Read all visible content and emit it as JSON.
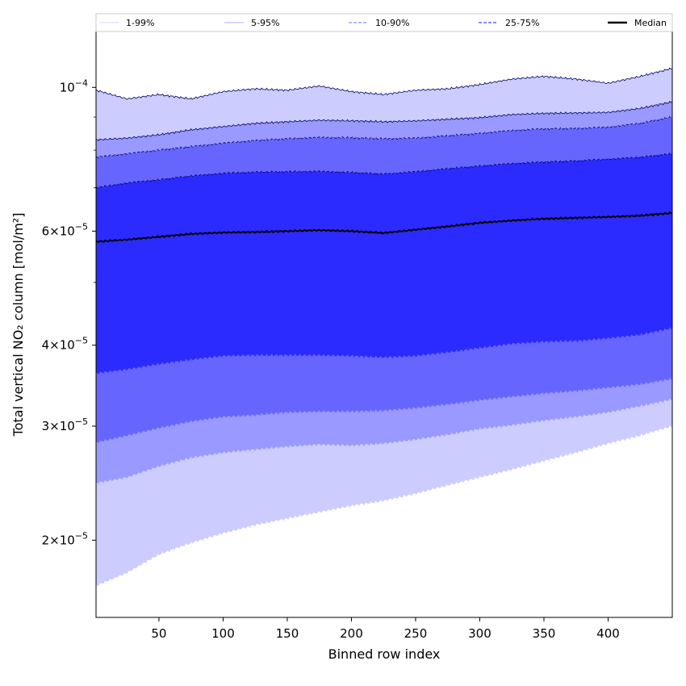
{
  "chart_data": {
    "type": "area",
    "xlabel": "Binned row index",
    "ylabel": "Total vertical NO₂ column [mol/m²]",
    "x_ticks": [
      50,
      100,
      150,
      200,
      250,
      300,
      350,
      400
    ],
    "y_ticks": [
      {
        "value": 0.0001,
        "mant": "",
        "exp": "−4",
        "label": "10"
      },
      {
        "value": 6e-05,
        "mant": "6×",
        "exp": "−5",
        "label": "10"
      },
      {
        "value": 4e-05,
        "mant": "4×",
        "exp": "−5",
        "label": "10"
      },
      {
        "value": 3e-05,
        "mant": "3×",
        "exp": "−5",
        "label": "10"
      },
      {
        "value": 2e-05,
        "mant": "2×",
        "exp": "−5",
        "label": "10"
      }
    ],
    "y_scale": "log",
    "xlim": [
      1,
      450
    ],
    "ylim": [
      1.52e-05,
      0.000122
    ],
    "grid": false,
    "legend_position": "top",
    "x": [
      1,
      25,
      50,
      75,
      100,
      125,
      150,
      175,
      200,
      225,
      250,
      275,
      300,
      325,
      350,
      375,
      400,
      425,
      450
    ],
    "series": [
      {
        "name": "1-99%",
        "lower": [
          1.7e-05,
          1.78e-05,
          1.9e-05,
          1.98e-05,
          2.05e-05,
          2.11e-05,
          2.16e-05,
          2.21e-05,
          2.26e-05,
          2.3e-05,
          2.36e-05,
          2.43e-05,
          2.5e-05,
          2.57e-05,
          2.65e-05,
          2.73e-05,
          2.82e-05,
          2.9e-05,
          3e-05
        ],
        "upper": [
          9.9e-05,
          9.6e-05,
          9.75e-05,
          9.6e-05,
          9.85e-05,
          9.95e-05,
          9.9e-05,
          0.0001005,
          9.85e-05,
          9.75e-05,
          9.9e-05,
          9.95e-05,
          0.000101,
          0.000103,
          0.000104,
          0.000103,
          0.0001015,
          0.000104,
          0.000107
        ],
        "color": "#ccccff"
      },
      {
        "name": "5-95%",
        "lower": [
          2.45e-05,
          2.5e-05,
          2.6e-05,
          2.68e-05,
          2.73e-05,
          2.76e-05,
          2.79e-05,
          2.81e-05,
          2.8e-05,
          2.82e-05,
          2.86e-05,
          2.91e-05,
          2.97e-05,
          3.01e-05,
          3.06e-05,
          3.1e-05,
          3.15e-05,
          3.22e-05,
          3.3e-05
        ],
        "upper": [
          8.3e-05,
          8.35e-05,
          8.45e-05,
          8.6e-05,
          8.7e-05,
          8.8e-05,
          8.85e-05,
          8.9e-05,
          8.88e-05,
          8.85e-05,
          8.88e-05,
          8.93e-05,
          8.98e-05,
          9.08e-05,
          9.12e-05,
          9.13e-05,
          9.15e-05,
          9.28e-05,
          9.5e-05
        ],
        "color": "#9999ff"
      },
      {
        "name": "10-90%",
        "lower": [
          2.83e-05,
          2.9e-05,
          2.98e-05,
          3.05e-05,
          3.1e-05,
          3.12e-05,
          3.15e-05,
          3.16e-05,
          3.16e-05,
          3.17e-05,
          3.2e-05,
          3.24e-05,
          3.29e-05,
          3.33e-05,
          3.37e-05,
          3.4e-05,
          3.44e-05,
          3.48e-05,
          3.55e-05
        ],
        "upper": [
          7.8e-05,
          7.9e-05,
          8e-05,
          8.1e-05,
          8.2e-05,
          8.28e-05,
          8.33e-05,
          8.37e-05,
          8.36e-05,
          8.33e-05,
          8.35e-05,
          8.42e-05,
          8.49e-05,
          8.58e-05,
          8.63e-05,
          8.64e-05,
          8.68e-05,
          8.8e-05,
          9e-05
        ],
        "color": "#6666ff"
      },
      {
        "name": "25-75%",
        "lower": [
          3.62e-05,
          3.67e-05,
          3.74e-05,
          3.8e-05,
          3.85e-05,
          3.86e-05,
          3.86e-05,
          3.86e-05,
          3.85e-05,
          3.83e-05,
          3.85e-05,
          3.9e-05,
          3.96e-05,
          4.02e-05,
          4.05e-05,
          4.06e-05,
          4.1e-05,
          4.15e-05,
          4.25e-05
        ],
        "upper": [
          7e-05,
          7.12e-05,
          7.2e-05,
          7.3e-05,
          7.37e-05,
          7.4e-05,
          7.41e-05,
          7.42e-05,
          7.39e-05,
          7.35e-05,
          7.41e-05,
          7.49e-05,
          7.56e-05,
          7.63e-05,
          7.67e-05,
          7.7e-05,
          7.75e-05,
          7.8e-05,
          7.9e-05
        ],
        "color": "#3333ff"
      }
    ],
    "median": {
      "name": "Median",
      "values": [
        5.78e-05,
        5.82e-05,
        5.88e-05,
        5.94e-05,
        5.97e-05,
        5.98e-05,
        6e-05,
        6.02e-05,
        6e-05,
        5.96e-05,
        6.03e-05,
        6.1e-05,
        6.18e-05,
        6.23e-05,
        6.27e-05,
        6.29e-05,
        6.31e-05,
        6.34e-05,
        6.4e-05
      ],
      "color": "#000000"
    },
    "colors": {
      "band_1_99": "#ccccff",
      "band_5_95": "#9999ff",
      "band_10_90": "#6666ff",
      "band_25_75": "#2b2bff",
      "median": "#000000"
    }
  },
  "legend": [
    {
      "label": "1-99%",
      "color": "#ccccff",
      "style": "thin"
    },
    {
      "label": "5-95%",
      "color": "#9999ff",
      "style": "thin"
    },
    {
      "label": "10-90%",
      "color": "#8888ff",
      "style": "dashed"
    },
    {
      "label": "25-75%",
      "color": "#4444ff",
      "style": "dashed"
    },
    {
      "label": "Median",
      "color": "#000000",
      "style": "solid"
    }
  ]
}
